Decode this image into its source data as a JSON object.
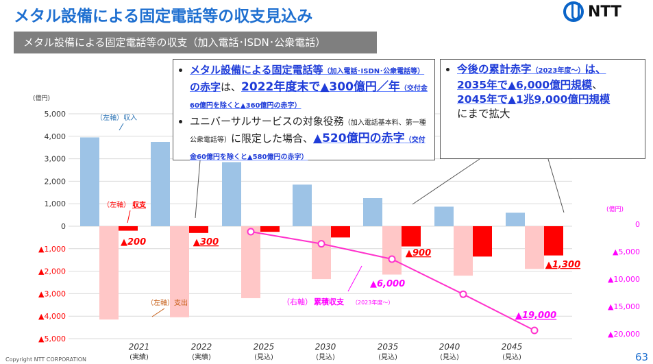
{
  "header": {
    "title": "メタル設備による固定電話等の収支見込み",
    "logo": "NTT",
    "subtitle": "メタル設備による固定電話等の収支（加入電話･ISDN･公衆電話）"
  },
  "callout1": {
    "p1": [
      "メタル設備による固定電話等",
      "（加入電話･ISDN･公衆電話等）",
      "の赤字",
      "は、",
      "2022年度末で▲300億円／年",
      "（交付金60億円を除くと▲360億円の赤字）"
    ],
    "p2": [
      "ユニバーサルサービスの対象役務",
      "（加入電話基本料、第一種公衆電話等）",
      "に限定した場合、",
      "▲520億円の赤字",
      "（交付金60億円を除くと▲580億円の赤字）"
    ]
  },
  "callout2": {
    "parts": [
      "今後の累計赤字",
      "（2023年度～）",
      "は、",
      "2035年で▲6,000億円規模",
      "、",
      "2045年で▲1兆9,000億円規模",
      "にまで拡大"
    ]
  },
  "chart_data": {
    "type": "bar",
    "categories": [
      "2021",
      "2022",
      "2025",
      "2030",
      "2035",
      "2040",
      "2045"
    ],
    "category_sub": [
      "(実績)",
      "(実績)",
      "(見込)",
      "(見込)",
      "(見込)",
      "(見込)",
      "(見込)"
    ],
    "ylabel": "(億円)",
    "ylabel_right": "(億円)",
    "ylim": [
      -5000,
      5000
    ],
    "yticks": [
      "5,000",
      "4,000",
      "3,000",
      "2,000",
      "1,000",
      "0",
      "▲1,000",
      "▲2,000",
      "▲3,000",
      "▲4,000",
      "▲5,000"
    ],
    "y2lim": [
      -20000,
      0
    ],
    "y2ticks": [
      "0",
      "▲5,000",
      "▲10,000",
      "▲15,000",
      "▲20,000"
    ],
    "series": [
      {
        "name": "（左軸）収入",
        "color": "#9dc3e6",
        "values": [
          3950,
          3750,
          2850,
          1850,
          1250,
          870,
          600
        ]
      },
      {
        "name": "（左軸）支出",
        "color": "#ffc7c7",
        "values": [
          -4150,
          -4050,
          -3200,
          -2350,
          -2150,
          -2200,
          -1900
        ]
      },
      {
        "name": "（左軸）収支",
        "color": "#ff0000",
        "values": [
          -200,
          -300,
          -250,
          -500,
          -900,
          -1350,
          -1300
        ]
      },
      {
        "name": "（右軸）累積収支（2023年度～）",
        "color": "#ff33cc",
        "axis": "right",
        "values": [
          null,
          null,
          -1000,
          -3200,
          -6000,
          -12400,
          -19000
        ]
      }
    ],
    "annotations": [
      "▲200",
      "▲300",
      "▲900",
      "▲1,300",
      "▲6,000",
      "▲19,000"
    ],
    "legend_labels": {
      "revenue_prefix": "（左軸）",
      "revenue": "収入",
      "balance_prefix": "（左軸）",
      "balance": "収支",
      "expense_prefix": "（左軸）",
      "expense": "支出",
      "cum_prefix": "（右軸）",
      "cum": "累積収支",
      "cum_sub": "（2023年度～）"
    }
  },
  "footer": {
    "copyright": "Copyright NTT CORPORATION",
    "page": "63"
  }
}
